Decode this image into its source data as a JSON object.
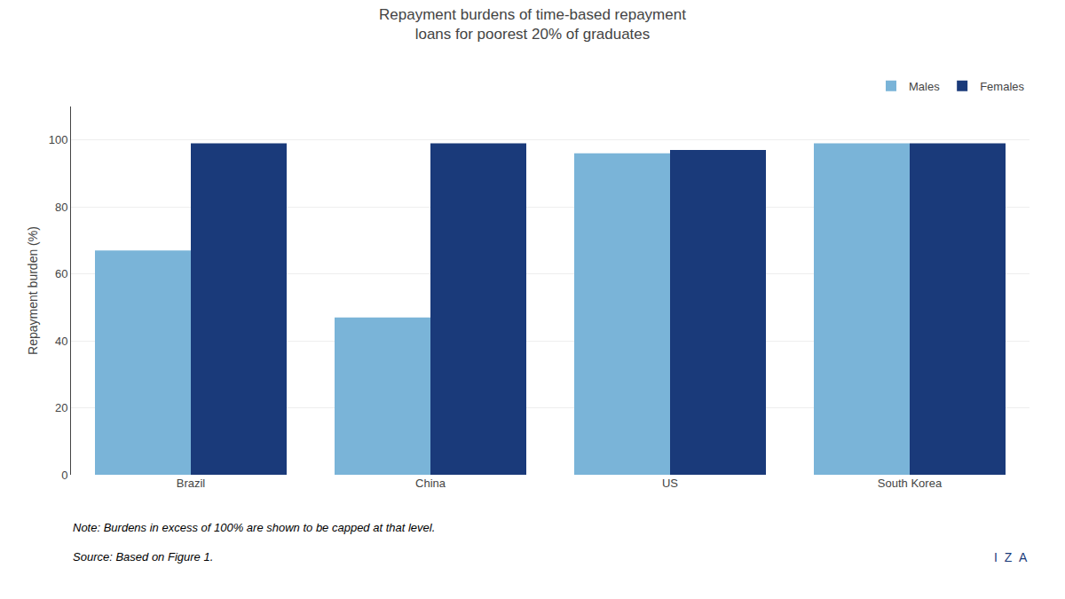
{
  "chart_data": {
    "type": "bar",
    "title": "Repayment burdens of time-based repayment\nloans for poorest 20% of graduates",
    "categories": [
      "Brazil",
      "China",
      "US",
      "South Korea"
    ],
    "series": [
      {
        "name": "Males",
        "color": "#7ab4d8",
        "values": [
          67,
          47,
          96,
          99
        ]
      },
      {
        "name": "Females",
        "color": "#1a3a7a",
        "values": [
          99,
          99,
          97,
          99
        ]
      }
    ],
    "ylabel": "Repayment burden (%)",
    "ylim": [
      0,
      110
    ],
    "yticks": [
      0,
      20,
      40,
      60,
      80,
      100
    ],
    "grid": true,
    "legend": "upper right",
    "annotations": [
      "Note: Burdens in excess of 100% are shown to be capped at that level.",
      "Source: Based on Figure 1.",
      "I  Z  A"
    ]
  }
}
